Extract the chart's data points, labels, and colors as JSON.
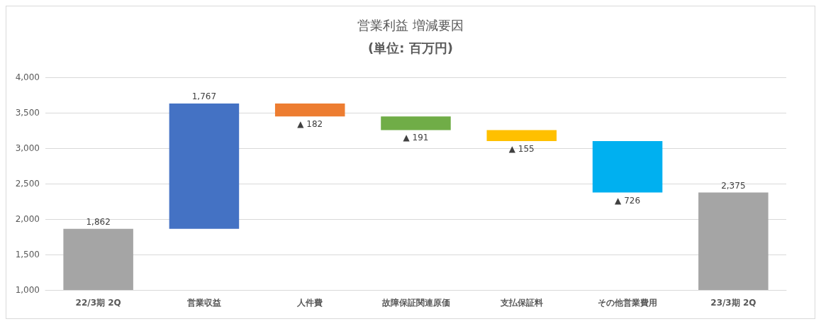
{
  "chart_data": {
    "type": "bar",
    "title": "営業利益 増減要因",
    "subtitle": "(単位: 百万円)",
    "categories": [
      "22/3期 2Q",
      "営業収益",
      "人件費",
      "故障保証関連原価",
      "支払保証料",
      "その他営業費用",
      "23/3期 2Q"
    ],
    "values": [
      1862,
      1767,
      -182,
      -191,
      -155,
      -726,
      2375
    ],
    "base": [
      null,
      1862,
      3629,
      3447,
      3256,
      3101,
      null
    ],
    "colors": [
      "#a5a5a5",
      "#4472c4",
      "#ed7d31",
      "#70ad47",
      "#ffc000",
      "#00b0f0",
      "#a5a5a5"
    ],
    "value_labels": [
      "1,862",
      "1,767",
      "▲ 182",
      "▲ 191",
      "▲ 155",
      "▲ 726",
      "2,375"
    ],
    "ylim": [
      1000,
      4000
    ],
    "yticks": [
      {
        "value": 1000,
        "label": "1,000"
      },
      {
        "value": 1500,
        "label": "1,500"
      },
      {
        "value": 2000,
        "label": "2,000"
      },
      {
        "value": 2500,
        "label": "2,500"
      },
      {
        "value": 3000,
        "label": "3,000"
      },
      {
        "value": 3500,
        "label": "3,500"
      },
      {
        "value": 4000,
        "label": "4,000"
      }
    ],
    "grid": "y"
  }
}
